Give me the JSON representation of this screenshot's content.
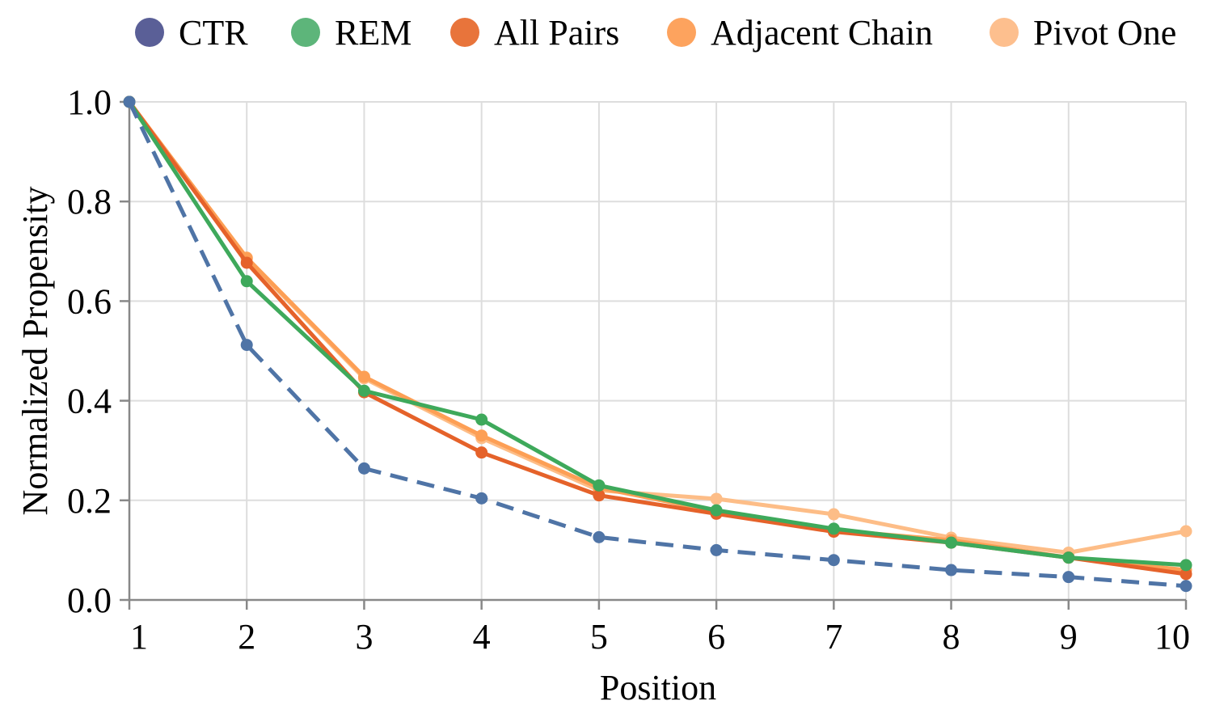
{
  "chart_data": {
    "type": "line",
    "title": "",
    "xlabel": "Position",
    "ylabel": "Normalized Propensity",
    "x": [
      1,
      2,
      3,
      4,
      5,
      6,
      7,
      8,
      9,
      10
    ],
    "x_tick_labels": [
      "1",
      "2",
      "3",
      "4",
      "5",
      "6",
      "7",
      "8",
      "9",
      "10"
    ],
    "y_tick_labels": [
      "0.0",
      "0.2",
      "0.4",
      "0.6",
      "0.8",
      "1.0"
    ],
    "y_ticks": [
      0.0,
      0.2,
      0.4,
      0.6,
      0.8,
      1.0
    ],
    "xlim": [
      1,
      10
    ],
    "ylim": [
      0,
      1
    ],
    "grid": true,
    "legend_position": "top",
    "legend": [
      {
        "name": "CTR",
        "marker_color": "#5a5f97"
      },
      {
        "name": "REM",
        "marker_color": "#5db57a"
      },
      {
        "name": "All Pairs",
        "marker_color": "#e8743b"
      },
      {
        "name": "Adjacent Chain",
        "marker_color": "#fda35e"
      },
      {
        "name": "Pivot One",
        "marker_color": "#fdbf8e"
      }
    ],
    "series": [
      {
        "name": "Pivot One",
        "color": "#fdbd87",
        "dashed": false,
        "values": [
          1.0,
          0.685,
          0.445,
          0.325,
          0.22,
          0.203,
          0.172,
          0.125,
          0.095,
          0.138
        ]
      },
      {
        "name": "Adjacent Chain",
        "color": "#fd9f55",
        "dashed": false,
        "values": [
          1.0,
          0.687,
          0.448,
          0.33,
          0.225,
          0.178,
          0.14,
          0.12,
          0.085,
          0.06
        ]
      },
      {
        "name": "All Pairs",
        "color": "#e5622a",
        "dashed": false,
        "values": [
          1.0,
          0.677,
          0.417,
          0.296,
          0.21,
          0.173,
          0.137,
          0.115,
          0.085,
          0.052
        ]
      },
      {
        "name": "REM",
        "color": "#3ea95b",
        "dashed": false,
        "values": [
          1.0,
          0.64,
          0.42,
          0.362,
          0.23,
          0.18,
          0.143,
          0.115,
          0.085,
          0.07
        ]
      },
      {
        "name": "CTR",
        "color": "#4f74a6",
        "dashed": true,
        "values": [
          1.0,
          0.512,
          0.264,
          0.204,
          0.126,
          0.1,
          0.08,
          0.06,
          0.046,
          0.028
        ]
      }
    ]
  }
}
